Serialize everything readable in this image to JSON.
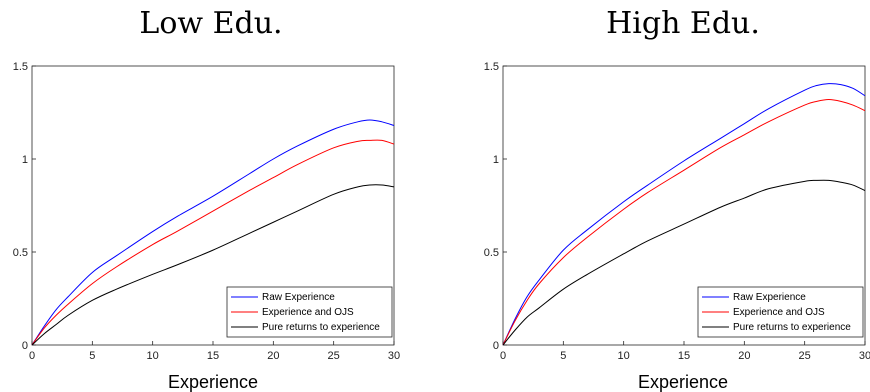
{
  "chart_data": [
    {
      "type": "line",
      "title": "Low Edu.",
      "xlabel": "Experience",
      "ylabel": "",
      "xlim": [
        0,
        30
      ],
      "ylim": [
        0,
        1.5
      ],
      "xticks": [
        "0",
        "5",
        "10",
        "15",
        "20",
        "25",
        "30"
      ],
      "yticks": [
        "0",
        "0.5",
        "1",
        "1.5"
      ],
      "legend_position": "bottom-right",
      "grid": false,
      "x": [
        0,
        1,
        2,
        3,
        5,
        7,
        10,
        12,
        15,
        18,
        20,
        22,
        25,
        27,
        28,
        29,
        30
      ],
      "series": [
        {
          "name": "Raw Experience",
          "color": "#0000ff",
          "values": [
            0,
            0.1,
            0.19,
            0.26,
            0.39,
            0.48,
            0.61,
            0.69,
            0.8,
            0.92,
            1.0,
            1.07,
            1.16,
            1.2,
            1.21,
            1.2,
            1.18
          ]
        },
        {
          "name": "Experience and OJS",
          "color": "#ff0000",
          "values": [
            0,
            0.09,
            0.16,
            0.22,
            0.33,
            0.42,
            0.54,
            0.61,
            0.72,
            0.83,
            0.9,
            0.97,
            1.06,
            1.095,
            1.1,
            1.1,
            1.08
          ]
        },
        {
          "name": "Pure returns to experience",
          "color": "#000000",
          "values": [
            0,
            0.06,
            0.11,
            0.16,
            0.24,
            0.3,
            0.38,
            0.43,
            0.51,
            0.6,
            0.66,
            0.72,
            0.81,
            0.85,
            0.86,
            0.86,
            0.85
          ]
        }
      ]
    },
    {
      "type": "line",
      "title": "High Edu.",
      "xlabel": "Experience",
      "ylabel": "",
      "xlim": [
        0,
        30
      ],
      "ylim": [
        0,
        1.5
      ],
      "xticks": [
        "0",
        "5",
        "10",
        "15",
        "20",
        "25",
        "30"
      ],
      "yticks": [
        "0",
        "0.5",
        "1",
        "1.5"
      ],
      "legend_position": "bottom-right",
      "grid": false,
      "x": [
        0,
        1,
        2,
        3,
        5,
        7,
        10,
        12,
        15,
        18,
        20,
        22,
        25,
        26,
        27,
        28,
        29,
        30
      ],
      "series": [
        {
          "name": "Raw Experience",
          "color": "#0000ff",
          "values": [
            0,
            0.14,
            0.26,
            0.35,
            0.51,
            0.62,
            0.77,
            0.86,
            0.99,
            1.11,
            1.19,
            1.27,
            1.37,
            1.395,
            1.405,
            1.4,
            1.38,
            1.34
          ]
        },
        {
          "name": "Experience and OJS",
          "color": "#ff0000",
          "values": [
            0,
            0.13,
            0.24,
            0.33,
            0.47,
            0.58,
            0.73,
            0.82,
            0.94,
            1.06,
            1.13,
            1.2,
            1.29,
            1.31,
            1.32,
            1.31,
            1.29,
            1.26
          ]
        },
        {
          "name": "Pure returns to experience",
          "color": "#000000",
          "values": [
            0,
            0.08,
            0.15,
            0.2,
            0.3,
            0.38,
            0.49,
            0.56,
            0.65,
            0.74,
            0.79,
            0.84,
            0.88,
            0.885,
            0.885,
            0.875,
            0.86,
            0.83
          ]
        }
      ]
    }
  ]
}
